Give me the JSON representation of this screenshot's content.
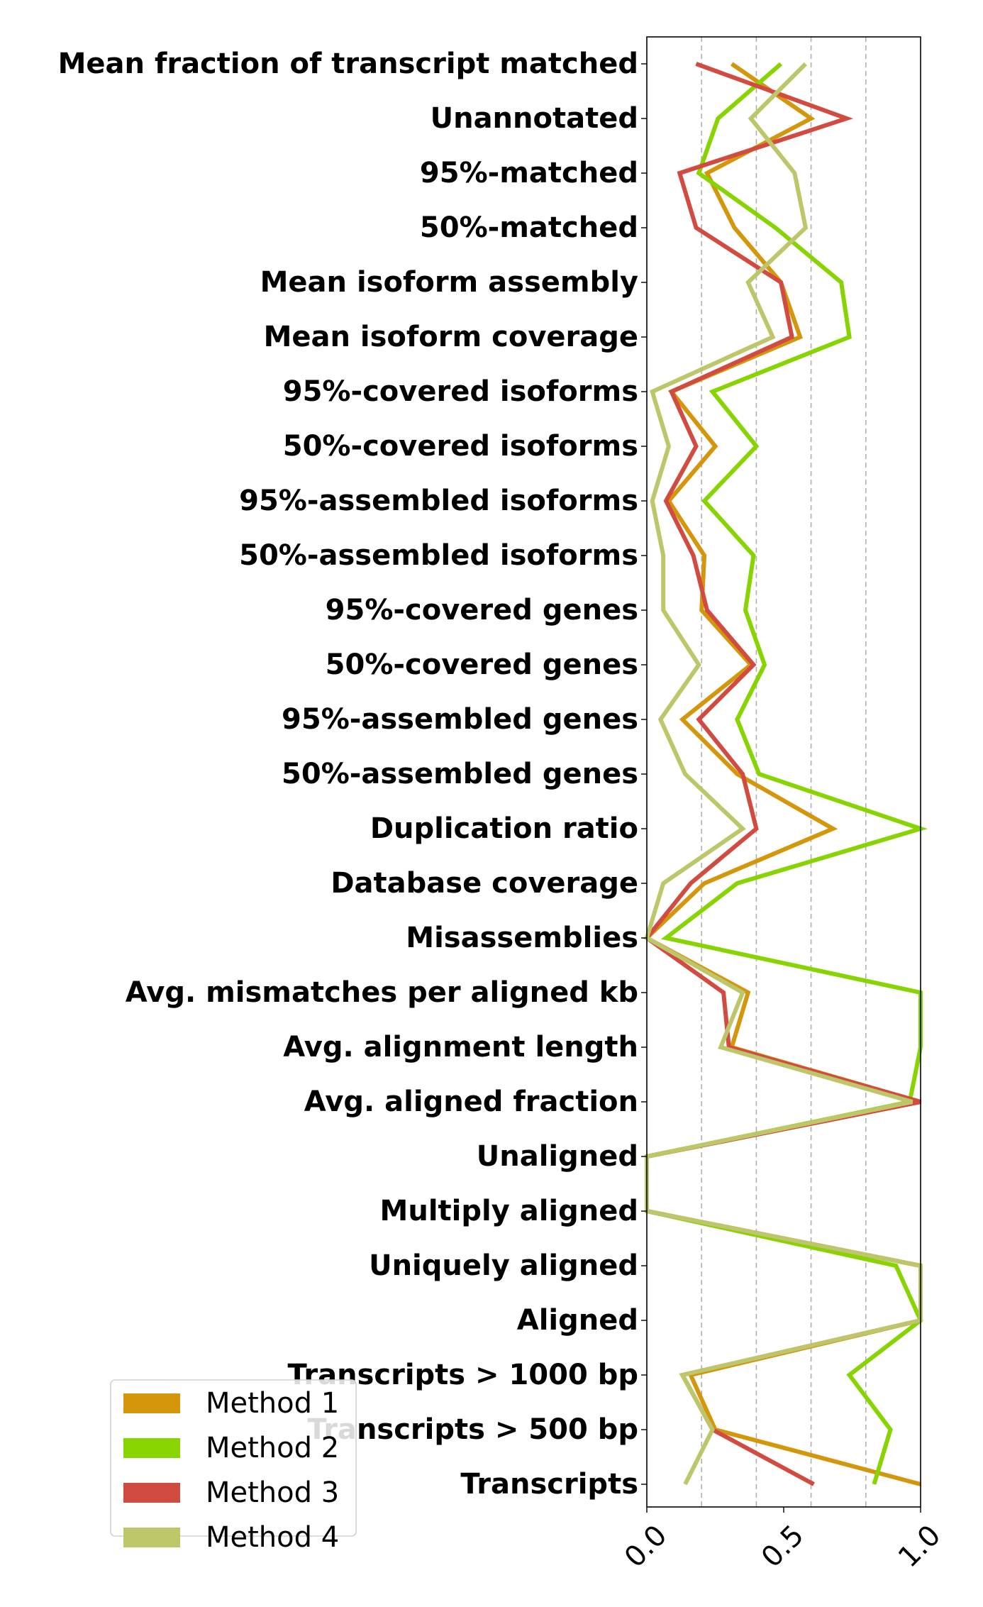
{
  "chart_data": {
    "type": "line",
    "orientation": "horizontal",
    "title": "",
    "xlabel": "",
    "ylabel": "",
    "xlim": [
      0,
      1
    ],
    "xticks": [
      0.0,
      0.5,
      1.0
    ],
    "xtick_labels": [
      "0.0",
      "0.5",
      "1.0"
    ],
    "minor_grid_x": [
      0.2,
      0.4,
      0.6,
      0.8
    ],
    "grid": "x-dashed",
    "legend_position": "bottom-left",
    "categories": [
      "Mean fraction of transcript matched",
      "Unannotated",
      "95%-matched",
      "50%-matched",
      "Mean isoform assembly",
      "Mean isoform coverage",
      "95%-covered isoforms",
      "50%-covered isoforms",
      "95%-assembled isoforms",
      "50%-assembled isoforms",
      "95%-covered genes",
      "50%-covered genes",
      "95%-assembled genes",
      "50%-assembled genes",
      "Duplication ratio",
      "Database coverage",
      "Misassemblies",
      "Avg. mismatches per aligned kb",
      "Avg. alignment length",
      "Avg. aligned fraction",
      "Unaligned",
      "Multiply aligned",
      "Uniquely aligned",
      "Aligned",
      "Transcripts > 1000 bp",
      "Transcripts > 500 bp",
      "Transcripts"
    ],
    "series": [
      {
        "name": "Method 1",
        "color": "#d4960a",
        "values": [
          0.31,
          0.6,
          0.22,
          0.32,
          0.49,
          0.56,
          0.09,
          0.25,
          0.08,
          0.21,
          0.2,
          0.38,
          0.13,
          0.33,
          0.68,
          0.21,
          0.0,
          0.37,
          0.31,
          1.0,
          0.0,
          0.0,
          1.0,
          1.0,
          0.16,
          0.25,
          1.0
        ]
      },
      {
        "name": "Method 2",
        "color": "#88d400",
        "values": [
          0.49,
          0.26,
          0.19,
          0.47,
          0.71,
          0.74,
          0.24,
          0.4,
          0.21,
          0.39,
          0.36,
          0.43,
          0.33,
          0.41,
          1.0,
          0.33,
          0.07,
          1.0,
          1.0,
          0.96,
          0.0,
          0.0,
          0.91,
          1.0,
          0.74,
          0.89,
          0.83
        ]
      },
      {
        "name": "Method 3",
        "color": "#d24b40",
        "values": [
          0.18,
          0.73,
          0.12,
          0.18,
          0.49,
          0.53,
          0.09,
          0.18,
          0.07,
          0.17,
          0.22,
          0.39,
          0.19,
          0.35,
          0.4,
          0.16,
          0.0,
          0.28,
          0.3,
          1.0,
          0.0,
          0.0,
          1.0,
          1.0,
          0.13,
          0.24,
          0.61
        ]
      },
      {
        "name": "Method 4",
        "color": "#bdc76a",
        "values": [
          0.58,
          0.38,
          0.54,
          0.58,
          0.37,
          0.46,
          0.02,
          0.08,
          0.02,
          0.06,
          0.06,
          0.19,
          0.05,
          0.14,
          0.35,
          0.06,
          0.0,
          0.35,
          0.27,
          0.97,
          0.0,
          0.0,
          1.0,
          1.0,
          0.13,
          0.24,
          0.14
        ]
      }
    ]
  }
}
